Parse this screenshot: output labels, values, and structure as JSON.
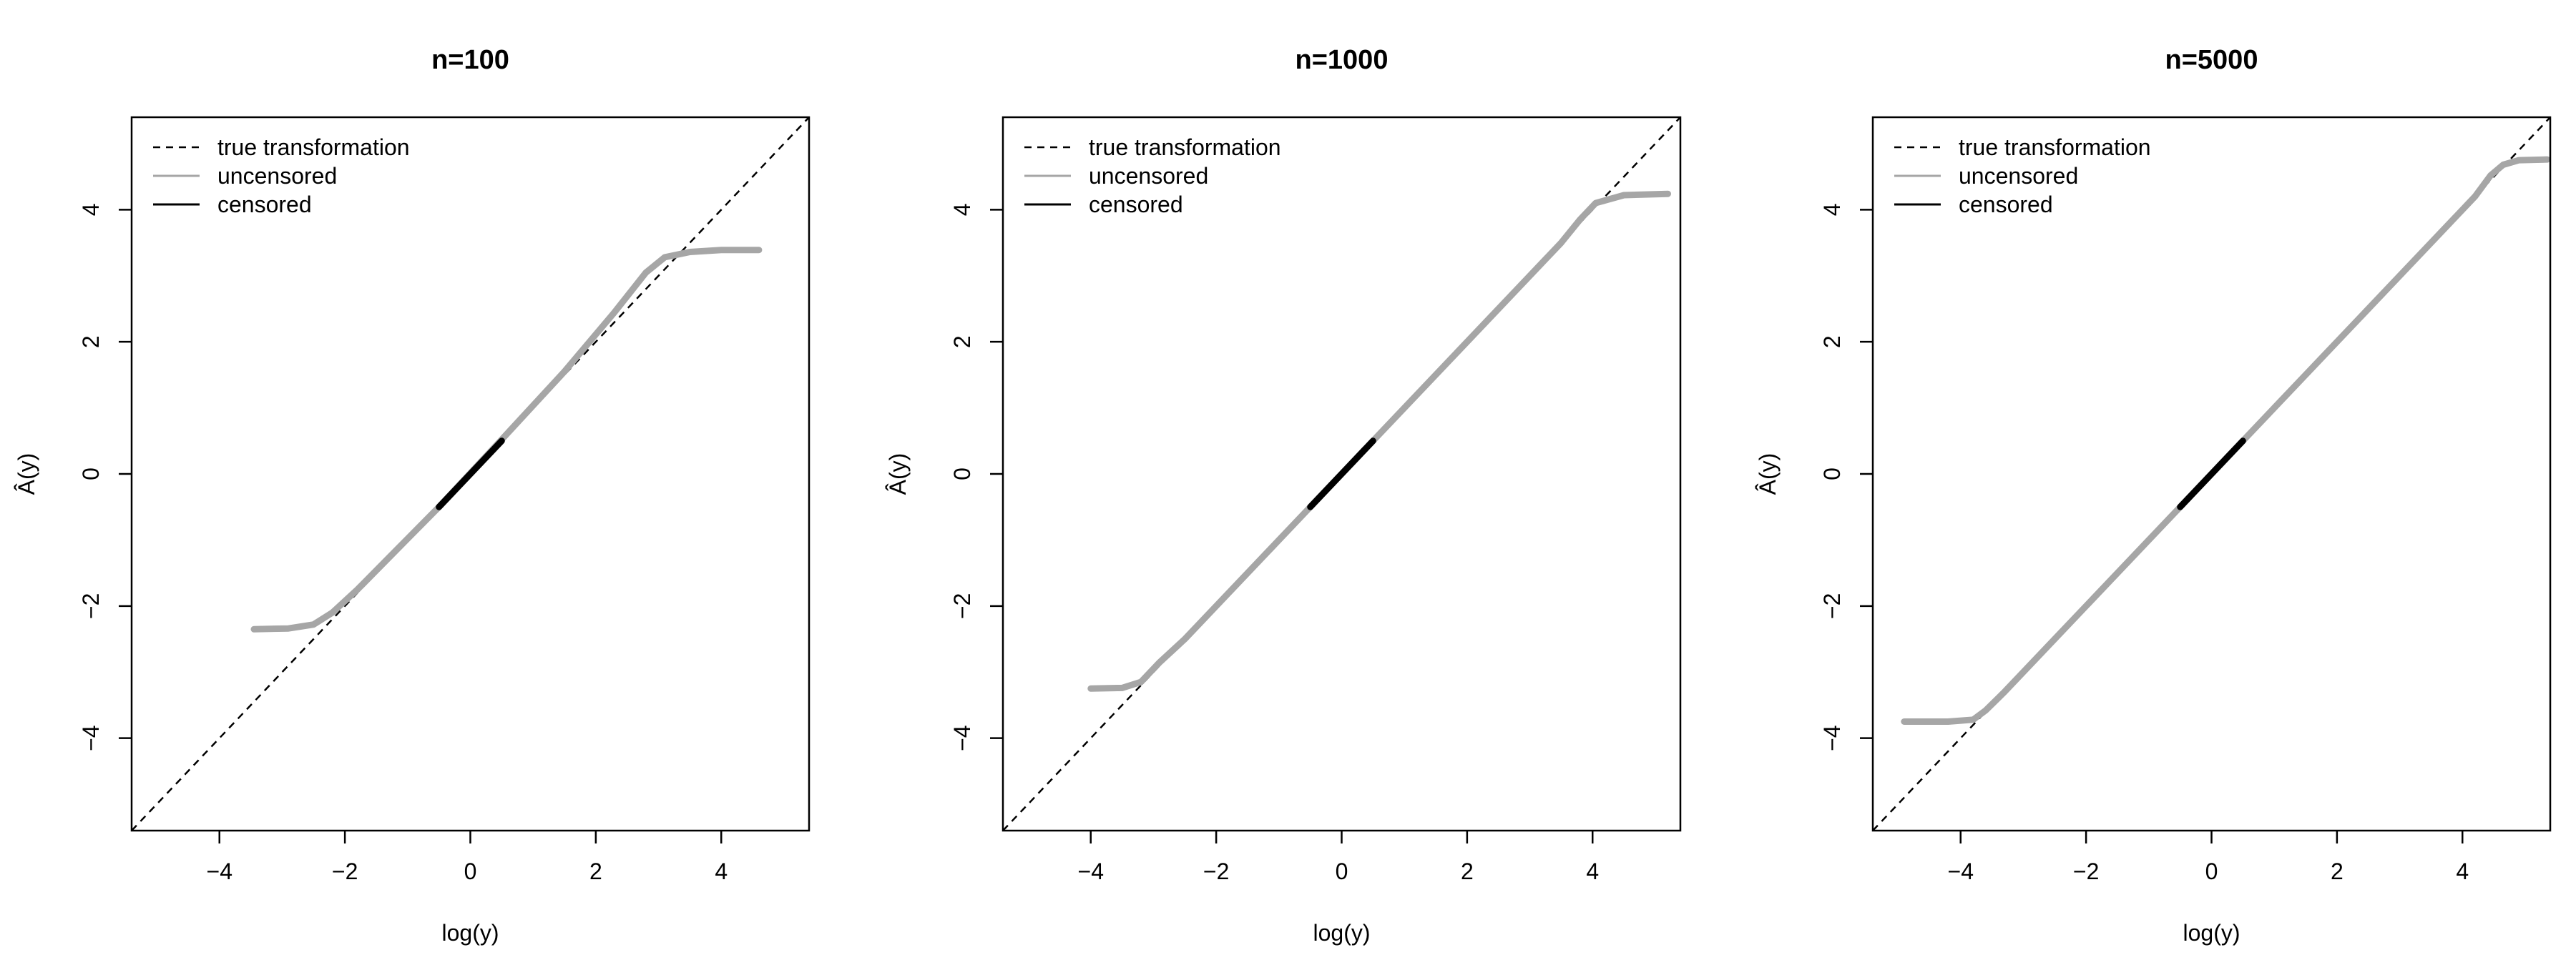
{
  "colors": {
    "true_line": "#000000",
    "uncensored": "#a6a6a6",
    "censored": "#000000",
    "frame": "#000000",
    "background": "#ffffff"
  },
  "legend": {
    "placement": "top-left",
    "entries": [
      {
        "label": "true transformation",
        "style": "dashed",
        "color": "#000000"
      },
      {
        "label": "uncensored",
        "style": "solid",
        "color": "#a6a6a6"
      },
      {
        "label": "censored",
        "style": "solid",
        "color": "#000000"
      }
    ]
  },
  "chart_data": [
    {
      "type": "line",
      "title": "n=100",
      "xlabel": "log(y)",
      "ylabel": "Â(y)",
      "xlim": [
        -5.4,
        5.4
      ],
      "ylim": [
        -5.4,
        5.4
      ],
      "xticks": [
        "−4",
        "−2",
        "0",
        "2",
        "4"
      ],
      "yticks": [
        "−4",
        "−2",
        "0",
        "2",
        "4"
      ],
      "grid": false,
      "series": [
        {
          "name": "true transformation",
          "x": [
            -5.4,
            5.4
          ],
          "y": [
            -5.4,
            5.4
          ]
        },
        {
          "name": "uncensored",
          "x": [
            -3.45,
            -2.9,
            -2.5,
            -2.2,
            -1.8,
            -1.0,
            -0.5,
            0.5,
            1.5,
            2.3,
            2.8,
            3.1,
            3.5,
            4.0,
            4.6
          ],
          "y": [
            -2.35,
            -2.34,
            -2.28,
            -2.1,
            -1.75,
            -0.98,
            -0.5,
            0.52,
            1.55,
            2.45,
            3.05,
            3.28,
            3.36,
            3.39,
            3.39
          ]
        },
        {
          "name": "censored",
          "x": [
            -0.5,
            0.5
          ],
          "y": [
            -0.5,
            0.5
          ]
        }
      ]
    },
    {
      "type": "line",
      "title": "n=1000",
      "xlabel": "log(y)",
      "ylabel": "Â(y)",
      "xlim": [
        -5.4,
        5.4
      ],
      "ylim": [
        -5.4,
        5.4
      ],
      "xticks": [
        "−4",
        "−2",
        "0",
        "2",
        "4"
      ],
      "yticks": [
        "−4",
        "−2",
        "0",
        "2",
        "4"
      ],
      "grid": false,
      "series": [
        {
          "name": "true transformation",
          "x": [
            -5.4,
            5.4
          ],
          "y": [
            -5.4,
            5.4
          ]
        },
        {
          "name": "uncensored",
          "x": [
            -4.0,
            -3.5,
            -3.2,
            -2.9,
            -2.5,
            -0.5,
            0.5,
            3.5,
            3.8,
            4.05,
            4.5,
            5.2
          ],
          "y": [
            -3.25,
            -3.24,
            -3.15,
            -2.85,
            -2.5,
            -0.5,
            0.5,
            3.5,
            3.85,
            4.1,
            4.22,
            4.24
          ]
        },
        {
          "name": "censored",
          "x": [
            -0.5,
            0.5
          ],
          "y": [
            -0.5,
            0.5
          ]
        }
      ]
    },
    {
      "type": "line",
      "title": "n=5000",
      "xlabel": "log(y)",
      "ylabel": "Â(y)",
      "xlim": [
        -5.4,
        5.4
      ],
      "ylim": [
        -5.4,
        5.4
      ],
      "xticks": [
        "−4",
        "−2",
        "0",
        "2",
        "4"
      ],
      "yticks": [
        "−4",
        "−2",
        "0",
        "2",
        "4"
      ],
      "grid": false,
      "series": [
        {
          "name": "true transformation",
          "x": [
            -5.4,
            5.4
          ],
          "y": [
            -5.4,
            5.4
          ]
        },
        {
          "name": "uncensored",
          "x": [
            -4.9,
            -4.2,
            -3.8,
            -3.6,
            -3.3,
            -0.5,
            0.5,
            4.2,
            4.45,
            4.65,
            4.9,
            5.35
          ],
          "y": [
            -3.75,
            -3.75,
            -3.72,
            -3.58,
            -3.3,
            -0.5,
            0.5,
            4.2,
            4.52,
            4.68,
            4.75,
            4.76
          ]
        },
        {
          "name": "censored",
          "x": [
            -0.5,
            0.5
          ],
          "y": [
            -0.5,
            0.5
          ]
        }
      ]
    }
  ]
}
